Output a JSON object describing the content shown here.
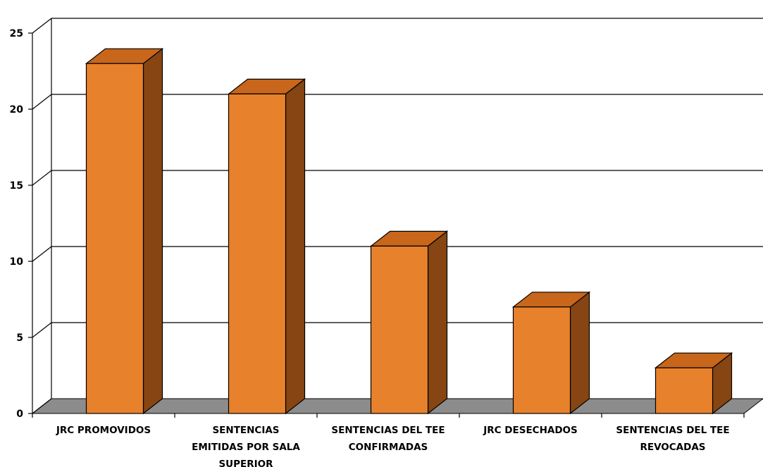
{
  "chart_data": {
    "type": "bar",
    "categories": [
      [
        "JRC PROMOVIDOS"
      ],
      [
        "SENTENCIAS",
        "EMITIDAS POR SALA",
        "SUPERIOR"
      ],
      [
        "SENTENCIAS DEL TEE",
        "CONFIRMADAS"
      ],
      [
        "JRC DESECHADOS"
      ],
      [
        "SENTENCIAS DEL TEE",
        "REVOCADAS"
      ]
    ],
    "values": [
      23,
      21,
      11,
      7,
      3
    ],
    "ylim": [
      0,
      25
    ],
    "yticks": [
      "0",
      "5",
      "10",
      "15",
      "20",
      "25"
    ],
    "grid": true,
    "colors": {
      "front": "#E8812C",
      "top": "#C8661B",
      "side": "#864512",
      "floor": "#8C8C8C",
      "grid": "#000000"
    }
  }
}
